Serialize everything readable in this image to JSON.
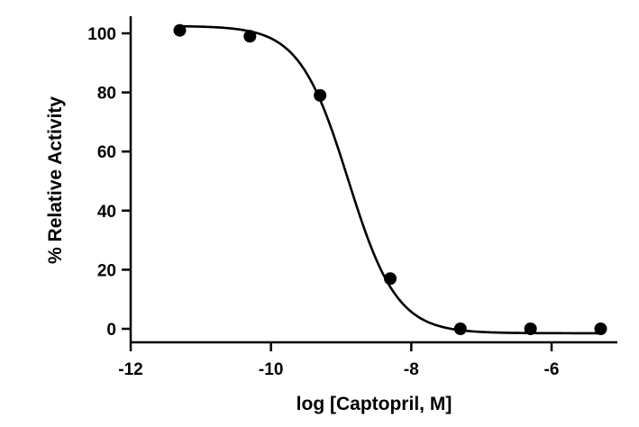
{
  "chart_data": {
    "type": "scatter",
    "title": "",
    "xlabel": "log [Captopril, M]",
    "ylabel": "% Relative Activity",
    "xlim": [
      -12,
      -5
    ],
    "ylim": [
      -5,
      105
    ],
    "x_ticks": [
      -12,
      -10,
      -8,
      -6
    ],
    "y_ticks": [
      0,
      20,
      40,
      60,
      80,
      100
    ],
    "x_tick_labels": [
      "-12",
      "-10",
      "-8",
      "-6"
    ],
    "y_tick_labels": [
      "0",
      "20",
      "40",
      "60",
      "80",
      "100"
    ],
    "grid": false,
    "legend": "none",
    "series": [
      {
        "kind": "points",
        "x": [
          -11.3,
          -10.3,
          -9.3,
          -8.3,
          -7.3,
          -6.3,
          -5.3
        ],
        "y": [
          101,
          99,
          79,
          17,
          0,
          0,
          0
        ]
      },
      {
        "kind": "fit-curve",
        "model": "four-parameter logistic",
        "top": 102.5,
        "bottom": -1.5,
        "log_ic50": -8.9,
        "hill_slope": -1.25
      }
    ],
    "colors": {
      "points": "#000000",
      "curve": "#000000",
      "axes": "#000000"
    }
  }
}
